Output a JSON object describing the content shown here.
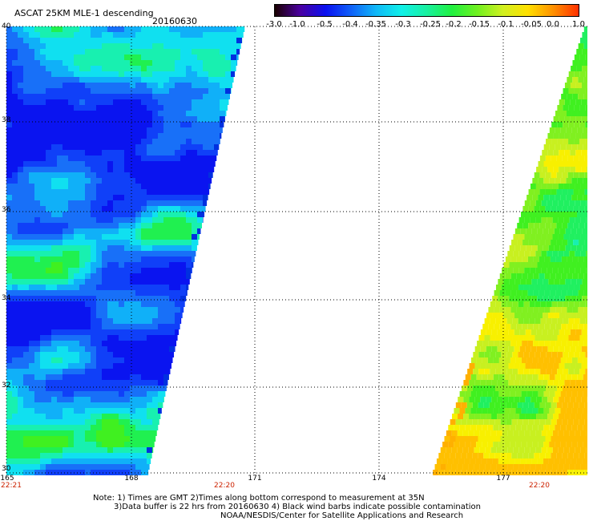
{
  "header": {
    "title": "ASCAT 25KM MLE-1 descending",
    "date": "20160630"
  },
  "colorbar": {
    "ticks": [
      "-3.0",
      "-1.0",
      "-0.5",
      "-0.4",
      "-0.35",
      "-0.3",
      "-0.25",
      "-0.2",
      "-0.15",
      "-0.1",
      "-0.05",
      "0.0",
      "1.0"
    ],
    "colors": [
      "#1a0000",
      "#4a00a0",
      "#0a10f0",
      "#1060f8",
      "#10b8f8",
      "#10f0e8",
      "#18f0a0",
      "#20f040",
      "#70f020",
      "#d0f020",
      "#ffe000",
      "#ff9000",
      "#ff3000"
    ]
  },
  "map": {
    "lat_labels": [
      "40",
      "38",
      "36",
      "34",
      "32",
      "30"
    ],
    "lon_labels": [
      "165",
      "168",
      "171",
      "174",
      "177"
    ],
    "time_labels": [
      "22:21",
      "22:20",
      "22:20"
    ],
    "lat_range": [
      30,
      40
    ],
    "lon_range": [
      165,
      179
    ]
  },
  "footer": {
    "note_line1": "Note: 1) Times are GMT 2)Times along bottom correspond to measurement at 35N",
    "note_line2": "3)Data buffer is 22 hrs from 20160630 4) Black wind barbs indicate possible contamination",
    "note_line3": "NOAA/NESDIS/Center for Satellite Applications and Research"
  }
}
